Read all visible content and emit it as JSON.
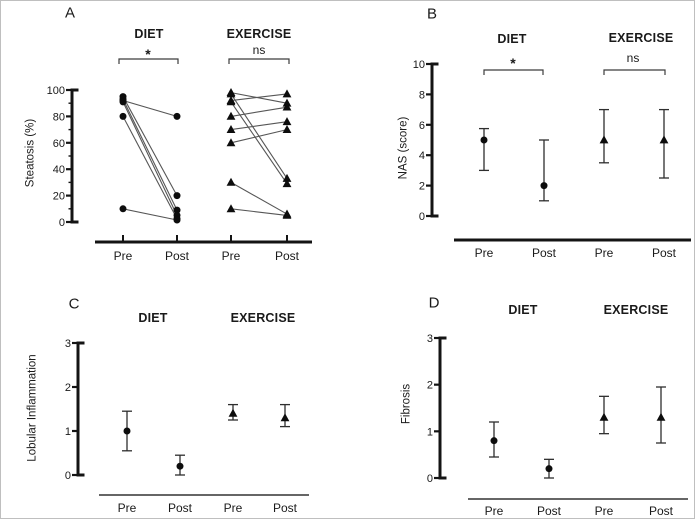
{
  "colors": {
    "marker": "#0d0d0d",
    "pair_line": "#565656",
    "error_bar": "#2e2e2e",
    "axis_dark": "#141414",
    "axis_light": "#666666",
    "text": "#1a1a1a"
  },
  "chart_data": [
    {
      "panel": "A",
      "type": "paired-lines",
      "ylabel": "Steatosis (%)",
      "ylim": [
        0,
        100
      ],
      "yticks": [
        0,
        20,
        40,
        60,
        80,
        100
      ],
      "y_minor_step": 10,
      "categories": [
        "Pre",
        "Post",
        "Pre",
        "Post"
      ],
      "grid": false,
      "groups": [
        {
          "name": "DIET",
          "significance": "*",
          "marker": "circle",
          "pairs": [
            [
              95,
              20
            ],
            [
              93,
              9
            ],
            [
              92,
              80
            ],
            [
              91,
              5
            ],
            [
              80,
              2.5
            ],
            [
              10,
              1.5
            ]
          ]
        },
        {
          "name": "EXERCISE",
          "significance": "ns",
          "marker": "triangle",
          "pairs": [
            [
              98,
              90
            ],
            [
              97,
              33
            ],
            [
              92,
              97
            ],
            [
              91,
              29
            ],
            [
              80,
              87
            ],
            [
              70,
              76
            ],
            [
              60,
              70
            ],
            [
              30,
              6
            ],
            [
              10,
              5
            ]
          ]
        }
      ]
    },
    {
      "panel": "B",
      "type": "mean-error",
      "ylabel": "NAS (score)",
      "ylim": [
        0,
        10
      ],
      "yticks": [
        0,
        2,
        4,
        6,
        8,
        10
      ],
      "categories": [
        "Pre",
        "Post",
        "Pre",
        "Post"
      ],
      "grid": false,
      "groups": [
        {
          "name": "DIET",
          "significance": "*",
          "marker": "circle",
          "points": [
            {
              "label": "Pre",
              "mean": 5,
              "lo": 3,
              "hi": 5.75
            },
            {
              "label": "Post",
              "mean": 2,
              "lo": 1,
              "hi": 5
            }
          ]
        },
        {
          "name": "EXERCISE",
          "significance": "ns",
          "marker": "triangle",
          "points": [
            {
              "label": "Pre",
              "mean": 5,
              "lo": 3.5,
              "hi": 7
            },
            {
              "label": "Post",
              "mean": 5,
              "lo": 2.5,
              "hi": 7
            }
          ]
        }
      ]
    },
    {
      "panel": "C",
      "type": "mean-error",
      "ylabel": "Lobular Inflammation",
      "ylim": [
        0,
        3
      ],
      "yticks": [
        0,
        1,
        2,
        3
      ],
      "categories": [
        "Pre",
        "Post",
        "Pre",
        "Post"
      ],
      "grid": false,
      "groups": [
        {
          "name": "DIET",
          "marker": "circle",
          "points": [
            {
              "label": "Pre",
              "mean": 1.0,
              "lo": 0.55,
              "hi": 1.45
            },
            {
              "label": "Post",
              "mean": 0.2,
              "lo": 0,
              "hi": 0.45
            }
          ]
        },
        {
          "name": "EXERCISE",
          "marker": "triangle",
          "points": [
            {
              "label": "Pre",
              "mean": 1.4,
              "lo": 1.25,
              "hi": 1.6
            },
            {
              "label": "Post",
              "mean": 1.3,
              "lo": 1.1,
              "hi": 1.6
            }
          ]
        }
      ]
    },
    {
      "panel": "D",
      "type": "mean-error",
      "ylabel": "Fibrosis",
      "ylim": [
        0,
        3
      ],
      "yticks": [
        0,
        1,
        2,
        3
      ],
      "categories": [
        "Pre",
        "Post",
        "Pre",
        "Post"
      ],
      "grid": false,
      "groups": [
        {
          "name": "DIET",
          "marker": "circle",
          "points": [
            {
              "label": "Pre",
              "mean": 0.8,
              "lo": 0.45,
              "hi": 1.2
            },
            {
              "label": "Post",
              "mean": 0.2,
              "lo": 0,
              "hi": 0.4
            }
          ]
        },
        {
          "name": "EXERCISE",
          "marker": "triangle",
          "points": [
            {
              "label": "Pre",
              "mean": 1.3,
              "lo": 0.95,
              "hi": 1.75
            },
            {
              "label": "Post",
              "mean": 1.3,
              "lo": 0.75,
              "hi": 1.95
            }
          ]
        }
      ]
    }
  ]
}
